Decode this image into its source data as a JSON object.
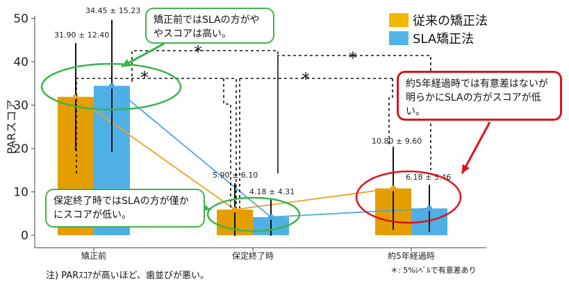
{
  "chart_data": {
    "type": "bar",
    "ylabel": "PARスコア",
    "ylim": [
      0,
      50
    ],
    "yticks": [
      0,
      10,
      20,
      30,
      40,
      50
    ],
    "categories": [
      "矯正前",
      "保定終了時",
      "約5年経過時"
    ],
    "series": [
      {
        "name": "従来の矯正法",
        "color": "#e59e00",
        "line_color": "#f0a020",
        "values": [
          31.9,
          5.9,
          10.8
        ],
        "errors": [
          12.4,
          6.1,
          9.6
        ],
        "labels": [
          "31.90 ± 12.40",
          "5.90 ± 6.10",
          "10.80 ± 9.60"
        ]
      },
      {
        "name": "SLA矯正法",
        "color": "#4fb0e6",
        "line_color": "#49a7e0",
        "values": [
          34.45,
          4.18,
          6.18
        ],
        "errors": [
          15.23,
          4.31,
          5.46
        ],
        "labels": [
          "34.45 ± 15.23",
          "4.18 ± 4.31",
          "6.18 ± 5.46"
        ]
      }
    ],
    "significance": [
      "*",
      "*",
      "*"
    ],
    "legend_position": "top-right",
    "grid": false
  },
  "callouts": {
    "top": "矯正前ではSLAの方がややスコアは高い。",
    "retention": "保定終了時ではSLAの方が僅かにスコアが低い。",
    "five_year": "約5年経過時では有意差はないが明らかにSLAの方がスコアが低い。"
  },
  "notes": {
    "par": "注) PARｽｺｱが高いほど、歯並びが悪い。",
    "significance": "＊: 5%ﾚﾍﾞﾙで有意差あり"
  },
  "colors": {
    "green": "#3cb44b",
    "red": "#e0111b"
  }
}
